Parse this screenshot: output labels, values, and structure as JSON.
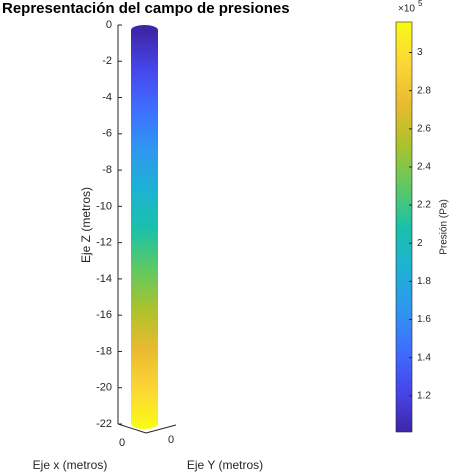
{
  "chart_data": {
    "type": "cylinder",
    "title": "Representación del campo de presiones",
    "xlabel": "Eje x (metros)",
    "ylabel": "Eje Y (metros)",
    "zlabel": "Eje Z (metros)",
    "xticks": [
      0
    ],
    "yticks": [
      0
    ],
    "zlim": [
      -22,
      0
    ],
    "zticks": [
      0,
      -2,
      -4,
      -6,
      -8,
      -10,
      -12,
      -14,
      -16,
      -18,
      -20,
      -22
    ],
    "surface_z": [
      0,
      -22
    ],
    "colormap": [
      "#3e26a8",
      "#4746eb",
      "#3e6ffe",
      "#2f97f0",
      "#1cb2d3",
      "#1bc1a9",
      "#5fc962",
      "#acc22c",
      "#eaba30",
      "#fcd636",
      "#f9fb15"
    ],
    "colorbar": {
      "label": "Presión (Pa)",
      "exponent_base": "×10",
      "exponent_power": "5",
      "clim": [
        101000,
        316000
      ],
      "ticks": [
        {
          "value": 120000,
          "label": "1.2"
        },
        {
          "value": 140000,
          "label": "1.4"
        },
        {
          "value": 160000,
          "label": "1.6"
        },
        {
          "value": 180000,
          "label": "1.8"
        },
        {
          "value": 200000,
          "label": "2"
        },
        {
          "value": 220000,
          "label": "2.2"
        },
        {
          "value": 240000,
          "label": "2.4"
        },
        {
          "value": 260000,
          "label": "2.6"
        },
        {
          "value": 280000,
          "label": "2.8"
        },
        {
          "value": 300000,
          "label": "3"
        }
      ]
    }
  }
}
